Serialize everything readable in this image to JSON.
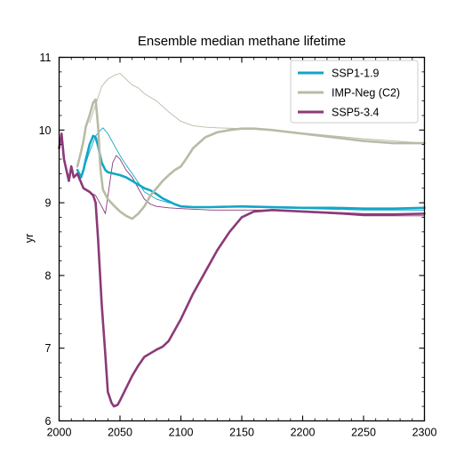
{
  "chart_data": {
    "type": "line",
    "title": "Ensemble median methane lifetime",
    "xlabel": "",
    "ylabel": "yr",
    "xlim": [
      2000,
      2300
    ],
    "ylim": [
      6,
      11
    ],
    "xticks": [
      "2000",
      "2050",
      "2100",
      "2150",
      "2200",
      "2250",
      "2300"
    ],
    "yticks": [
      "6",
      "7",
      "8",
      "9",
      "10",
      "11"
    ],
    "grid": false,
    "legend_position": "top-right",
    "legend": [
      "SSP1-1.9",
      "IMP-Neg (C2)",
      "SSP5-3.4"
    ],
    "series": [
      {
        "name": "SSP1-1.9",
        "color": "#12a6c8",
        "role": "bold",
        "x": [
          2015,
          2018,
          2020,
          2022,
          2025,
          2028,
          2030,
          2032,
          2035,
          2038,
          2040,
          2045,
          2050,
          2055,
          2060,
          2065,
          2070,
          2075,
          2080,
          2085,
          2090,
          2095,
          2100,
          2110,
          2125,
          2150,
          2175,
          2200,
          2225,
          2250,
          2275,
          2300
        ],
        "y": [
          9.45,
          9.35,
          9.45,
          9.6,
          9.8,
          9.92,
          9.9,
          9.78,
          9.55,
          9.45,
          9.42,
          9.4,
          9.38,
          9.35,
          9.3,
          9.25,
          9.2,
          9.17,
          9.12,
          9.06,
          9.02,
          8.98,
          8.95,
          8.94,
          8.94,
          8.95,
          8.94,
          8.93,
          8.93,
          8.92,
          8.92,
          8.93
        ]
      },
      {
        "name": "IMP-Neg (C2)",
        "color": "#b8bba6",
        "role": "bold",
        "x": [
          2015,
          2018,
          2020,
          2022,
          2025,
          2028,
          2030,
          2032,
          2034,
          2036,
          2040,
          2045,
          2050,
          2055,
          2060,
          2065,
          2070,
          2075,
          2080,
          2085,
          2090,
          2095,
          2100,
          2105,
          2110,
          2120,
          2130,
          2140,
          2150,
          2160,
          2175,
          2200,
          2225,
          2250,
          2275,
          2300
        ],
        "y": [
          9.5,
          9.7,
          9.85,
          10.05,
          10.2,
          10.38,
          10.42,
          10.05,
          9.45,
          9.18,
          9.05,
          8.96,
          8.88,
          8.82,
          8.78,
          8.85,
          8.95,
          9.1,
          9.2,
          9.3,
          9.38,
          9.45,
          9.5,
          9.62,
          9.75,
          9.9,
          9.97,
          10.0,
          10.02,
          10.02,
          10.0,
          9.95,
          9.9,
          9.85,
          9.82,
          9.82
        ]
      },
      {
        "name": "SSP5-3.4",
        "color": "#8b3a78",
        "role": "bold",
        "x": [
          2000,
          2002,
          2004,
          2006,
          2008,
          2010,
          2012,
          2015,
          2018,
          2020,
          2025,
          2028,
          2030,
          2032,
          2035,
          2038,
          2040,
          2043,
          2045,
          2048,
          2050,
          2055,
          2060,
          2065,
          2070,
          2075,
          2080,
          2085,
          2090,
          2095,
          2100,
          2110,
          2120,
          2130,
          2140,
          2150,
          2160,
          2175,
          2200,
          2225,
          2250,
          2275,
          2300
        ],
        "y": [
          9.75,
          9.95,
          9.6,
          9.45,
          9.3,
          9.5,
          9.35,
          9.4,
          9.28,
          9.2,
          9.15,
          9.1,
          9.0,
          8.5,
          7.6,
          6.9,
          6.4,
          6.25,
          6.2,
          6.22,
          6.28,
          6.45,
          6.62,
          6.76,
          6.88,
          6.93,
          6.98,
          7.02,
          7.1,
          7.25,
          7.4,
          7.75,
          8.05,
          8.35,
          8.6,
          8.8,
          8.88,
          8.9,
          8.88,
          8.86,
          8.84,
          8.84,
          8.85
        ]
      },
      {
        "name": "",
        "color": "#12a6c8",
        "role": "thin",
        "x": [
          2020,
          2025,
          2030,
          2033,
          2036,
          2040,
          2045,
          2050,
          2055,
          2060,
          2065,
          2070,
          2080,
          2090,
          2100,
          2110,
          2125,
          2150,
          2175,
          2200,
          2225,
          2250,
          2275,
          2300
        ],
        "y": [
          9.45,
          9.7,
          9.92,
          9.98,
          10.03,
          9.95,
          9.8,
          9.65,
          9.52,
          9.4,
          9.28,
          9.15,
          9.05,
          9.0,
          8.96,
          8.94,
          8.94,
          8.94,
          8.93,
          8.92,
          8.91,
          8.9,
          8.9,
          8.9
        ]
      },
      {
        "name": "",
        "color": "#b8bba6",
        "role": "thin",
        "x": [
          2025,
          2030,
          2035,
          2040,
          2045,
          2050,
          2055,
          2060,
          2065,
          2070,
          2080,
          2090,
          2100,
          2110,
          2120,
          2130,
          2150,
          2175,
          2200,
          2250,
          2300
        ],
        "y": [
          10.1,
          10.35,
          10.6,
          10.7,
          10.75,
          10.78,
          10.7,
          10.62,
          10.58,
          10.5,
          10.4,
          10.25,
          10.12,
          10.06,
          10.04,
          10.03,
          10.02,
          10.0,
          9.96,
          9.88,
          9.82
        ]
      },
      {
        "name": "",
        "color": "#8b3a78",
        "role": "thin",
        "x": [
          2020,
          2025,
          2030,
          2035,
          2038,
          2041,
          2044,
          2047,
          2050,
          2055,
          2060,
          2065,
          2070,
          2075,
          2080,
          2090,
          2100,
          2125,
          2150,
          2175,
          2200,
          2225,
          2250,
          2275,
          2300
        ],
        "y": [
          9.2,
          9.15,
          9.1,
          8.95,
          8.85,
          9.2,
          9.55,
          9.65,
          9.6,
          9.45,
          9.35,
          9.2,
          9.05,
          8.98,
          8.95,
          8.93,
          8.92,
          8.9,
          8.9,
          8.9,
          8.87,
          8.85,
          8.82,
          8.82,
          8.82
        ]
      }
    ]
  }
}
